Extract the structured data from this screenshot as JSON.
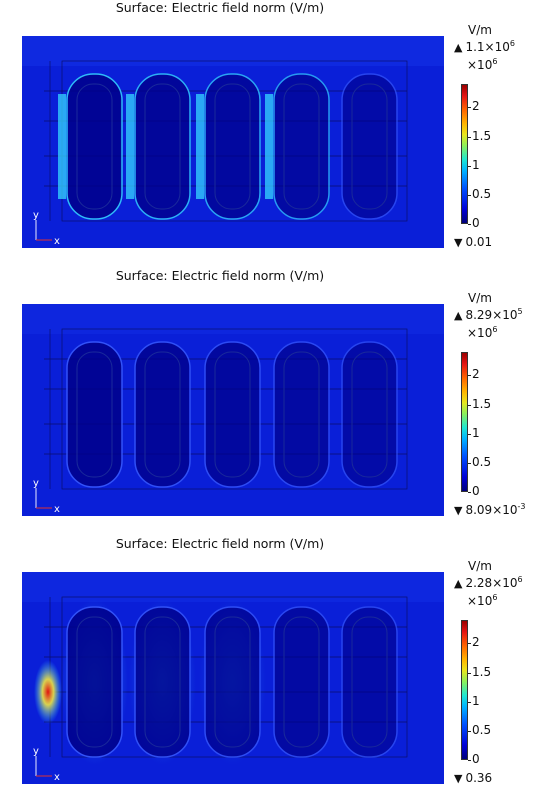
{
  "plots": [
    {
      "title": "Surface: Electric field norm (V/m)",
      "colorbar": {
        "unit": "V/m",
        "max_base": "1.1×10",
        "max_exp": "6",
        "multiplier_base": "×10",
        "multiplier_exp": "6",
        "ticks": [
          "2",
          "1.5",
          "1",
          "0.5",
          "0"
        ],
        "tick_values": [
          2,
          1.5,
          1,
          0.5,
          0
        ],
        "range": [
          0,
          2.4
        ],
        "min_label": "0.01"
      },
      "axis_labels": {
        "y": "y",
        "x": "x"
      },
      "field_level": 0.35,
      "hot_gaps": [
        1,
        2,
        3,
        4
      ],
      "hot_spot": false
    },
    {
      "title": "Surface: Electric field norm (V/m)",
      "colorbar": {
        "unit": "V/m",
        "max_base": "8.29×10",
        "max_exp": "5",
        "multiplier_base": "×10",
        "multiplier_exp": "6",
        "ticks": [
          "2",
          "1.5",
          "1",
          "0.5",
          "0"
        ],
        "tick_values": [
          2,
          1.5,
          1,
          0.5,
          0
        ],
        "range": [
          0,
          2.4
        ],
        "min_label_base": "8.09×10",
        "min_label_exp": "-3"
      },
      "axis_labels": {
        "y": "y",
        "x": "x"
      },
      "field_level": 0.25,
      "hot_gaps": [],
      "hot_spot": false
    },
    {
      "title": "Surface: Electric field norm (V/m)",
      "colorbar": {
        "unit": "V/m",
        "max_base": "2.28×10",
        "max_exp": "6",
        "multiplier_base": "×10",
        "multiplier_exp": "6",
        "ticks": [
          "2",
          "1.5",
          "1",
          "0.5",
          "0"
        ],
        "tick_values": [
          2,
          1.5,
          1,
          0.5,
          0
        ],
        "range": [
          0,
          2.4
        ],
        "min_label": "0.36"
      },
      "axis_labels": {
        "y": "y",
        "x": "x"
      },
      "field_level": 0.3,
      "hot_gaps": [],
      "hot_spot": true
    }
  ],
  "colors": {
    "background_field": "#0a1fd8",
    "dark_field": "#00008a",
    "hot_cyan": "#35d7ff",
    "hot_yellow": "#f0e640",
    "hot_red": "#e01010"
  }
}
